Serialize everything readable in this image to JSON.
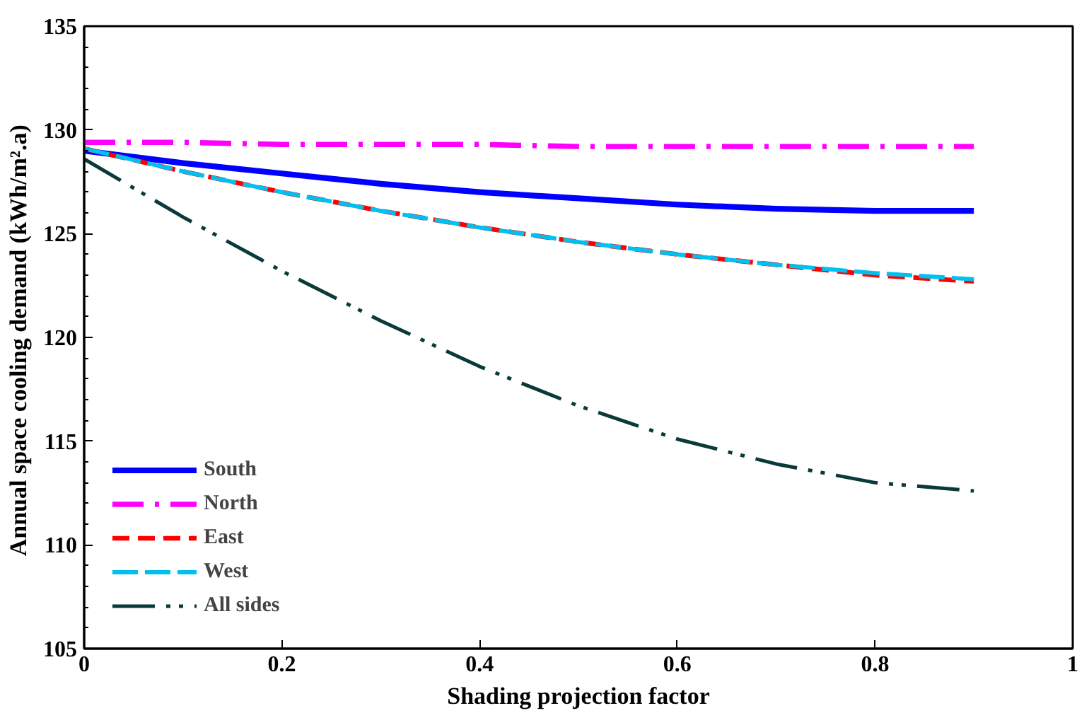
{
  "chart_data": {
    "type": "line",
    "xlabel": "Shading projection factor",
    "ylabel": "Annual space  cooling demand (kWh/m².a)",
    "x": [
      0,
      0.1,
      0.2,
      0.3,
      0.4,
      0.5,
      0.6,
      0.7,
      0.8,
      0.9
    ],
    "xlim": [
      0,
      1
    ],
    "xticks": [
      0,
      0.2,
      0.4,
      0.6,
      0.8,
      1
    ],
    "ylim": [
      105,
      135
    ],
    "yticks": [
      105,
      110,
      115,
      120,
      125,
      130,
      135
    ],
    "grid": false,
    "legend": "bottom left",
    "marker": "none",
    "series": [
      {
        "name": "South",
        "color": "#0000ff",
        "line_style": "solid",
        "values": [
          129.0,
          128.4,
          127.9,
          127.4,
          127.0,
          126.7,
          126.4,
          126.2,
          126.1,
          126.1
        ]
      },
      {
        "name": "North",
        "color": "#ff00ff",
        "line_style": "dashdot",
        "values": [
          129.4,
          129.4,
          129.3,
          129.3,
          129.3,
          129.2,
          129.2,
          129.2,
          129.2,
          129.2
        ]
      },
      {
        "name": "East",
        "color": "#ff0000",
        "line_style": "dashed",
        "values": [
          129.1,
          128.0,
          127.0,
          126.1,
          125.3,
          124.6,
          124.0,
          123.5,
          123.0,
          122.7
        ]
      },
      {
        "name": "West",
        "color": "#00c0f0",
        "line_style": "longdash",
        "values": [
          129.1,
          128.0,
          127.0,
          126.1,
          125.3,
          124.6,
          124.0,
          123.5,
          123.1,
          122.8
        ]
      },
      {
        "name": "All sides",
        "color": "#0a3a3a",
        "line_style": "dashdotdot",
        "values": [
          128.6,
          125.8,
          123.2,
          120.8,
          118.6,
          116.7,
          115.1,
          113.9,
          113.0,
          112.6
        ]
      }
    ]
  }
}
